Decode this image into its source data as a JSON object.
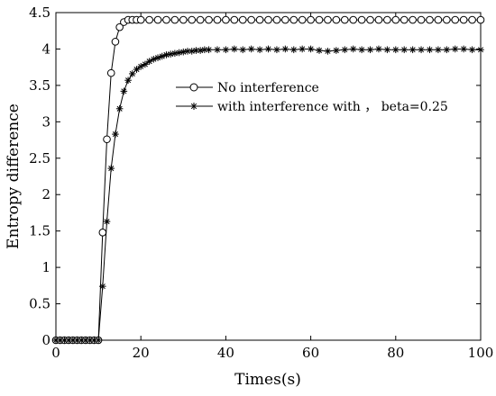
{
  "chart_data": {
    "type": "line",
    "xlabel": "Times(s)",
    "ylabel": "Entropy difference",
    "xlim": [
      0,
      100
    ],
    "ylim": [
      0,
      4.5
    ],
    "x_ticks": [
      0,
      20,
      40,
      60,
      80,
      100
    ],
    "y_ticks": [
      0,
      0.5,
      1,
      1.5,
      2,
      2.5,
      3,
      3.5,
      4,
      4.5
    ],
    "x_tick_labels": [
      "0",
      "20",
      "40",
      "60",
      "80",
      "100"
    ],
    "y_tick_labels": [
      "0",
      "0.5",
      "1",
      "1.5",
      "2",
      "2.5",
      "3",
      "3.5",
      "4",
      "4.5"
    ],
    "grid": false,
    "legend_position": "center-right",
    "series": [
      {
        "name": "No interference",
        "marker": "circle",
        "color": "#000000",
        "x": [
          0,
          1,
          2,
          3,
          4,
          5,
          6,
          7,
          8,
          9,
          10,
          11,
          12,
          13,
          14,
          15,
          16,
          17,
          18,
          19,
          20,
          22,
          24,
          26,
          28,
          30,
          32,
          34,
          36,
          38,
          40,
          42,
          44,
          46,
          48,
          50,
          52,
          54,
          56,
          58,
          60,
          62,
          64,
          66,
          68,
          70,
          72,
          74,
          76,
          78,
          80,
          82,
          84,
          86,
          88,
          90,
          92,
          94,
          96,
          98,
          100
        ],
        "y": [
          0,
          0,
          0,
          0,
          0,
          0,
          0,
          0,
          0,
          0,
          0,
          1.48,
          2.76,
          3.67,
          4.1,
          4.3,
          4.37,
          4.4,
          4.4,
          4.4,
          4.4,
          4.4,
          4.4,
          4.4,
          4.4,
          4.4,
          4.4,
          4.4,
          4.4,
          4.4,
          4.4,
          4.4,
          4.4,
          4.4,
          4.4,
          4.4,
          4.4,
          4.4,
          4.4,
          4.4,
          4.4,
          4.4,
          4.4,
          4.4,
          4.4,
          4.4,
          4.4,
          4.4,
          4.4,
          4.4,
          4.4,
          4.4,
          4.4,
          4.4,
          4.4,
          4.4,
          4.4,
          4.4,
          4.4,
          4.4,
          4.4
        ]
      },
      {
        "name": "with interference with ， beta=0.25",
        "marker": "asterisk",
        "color": "#000000",
        "x": [
          0,
          1,
          2,
          3,
          4,
          5,
          6,
          7,
          8,
          9,
          10,
          11,
          12,
          13,
          14,
          15,
          16,
          17,
          18,
          19,
          20,
          21,
          22,
          23,
          24,
          25,
          26,
          27,
          28,
          29,
          30,
          31,
          32,
          33,
          34,
          35,
          36,
          38,
          40,
          42,
          44,
          46,
          48,
          50,
          52,
          54,
          56,
          58,
          60,
          62,
          64,
          66,
          68,
          70,
          72,
          74,
          76,
          78,
          80,
          82,
          84,
          86,
          88,
          90,
          92,
          94,
          96,
          98,
          100
        ],
        "y": [
          0,
          0,
          0,
          0,
          0,
          0,
          0,
          0,
          0,
          0,
          0,
          0.74,
          1.63,
          2.36,
          2.83,
          3.18,
          3.42,
          3.57,
          3.66,
          3.72,
          3.76,
          3.79,
          3.83,
          3.86,
          3.88,
          3.9,
          3.92,
          3.93,
          3.94,
          3.95,
          3.96,
          3.97,
          3.97,
          3.98,
          3.98,
          3.99,
          3.99,
          3.99,
          3.99,
          4.0,
          3.99,
          4.0,
          3.99,
          4.0,
          3.99,
          4.0,
          3.99,
          4.0,
          4.0,
          3.98,
          3.97,
          3.98,
          3.99,
          4.0,
          3.99,
          3.99,
          4.0,
          3.99,
          3.99,
          3.99,
          3.99,
          3.99,
          3.99,
          3.99,
          3.99,
          4.0,
          4.0,
          3.99,
          3.99
        ]
      }
    ]
  }
}
